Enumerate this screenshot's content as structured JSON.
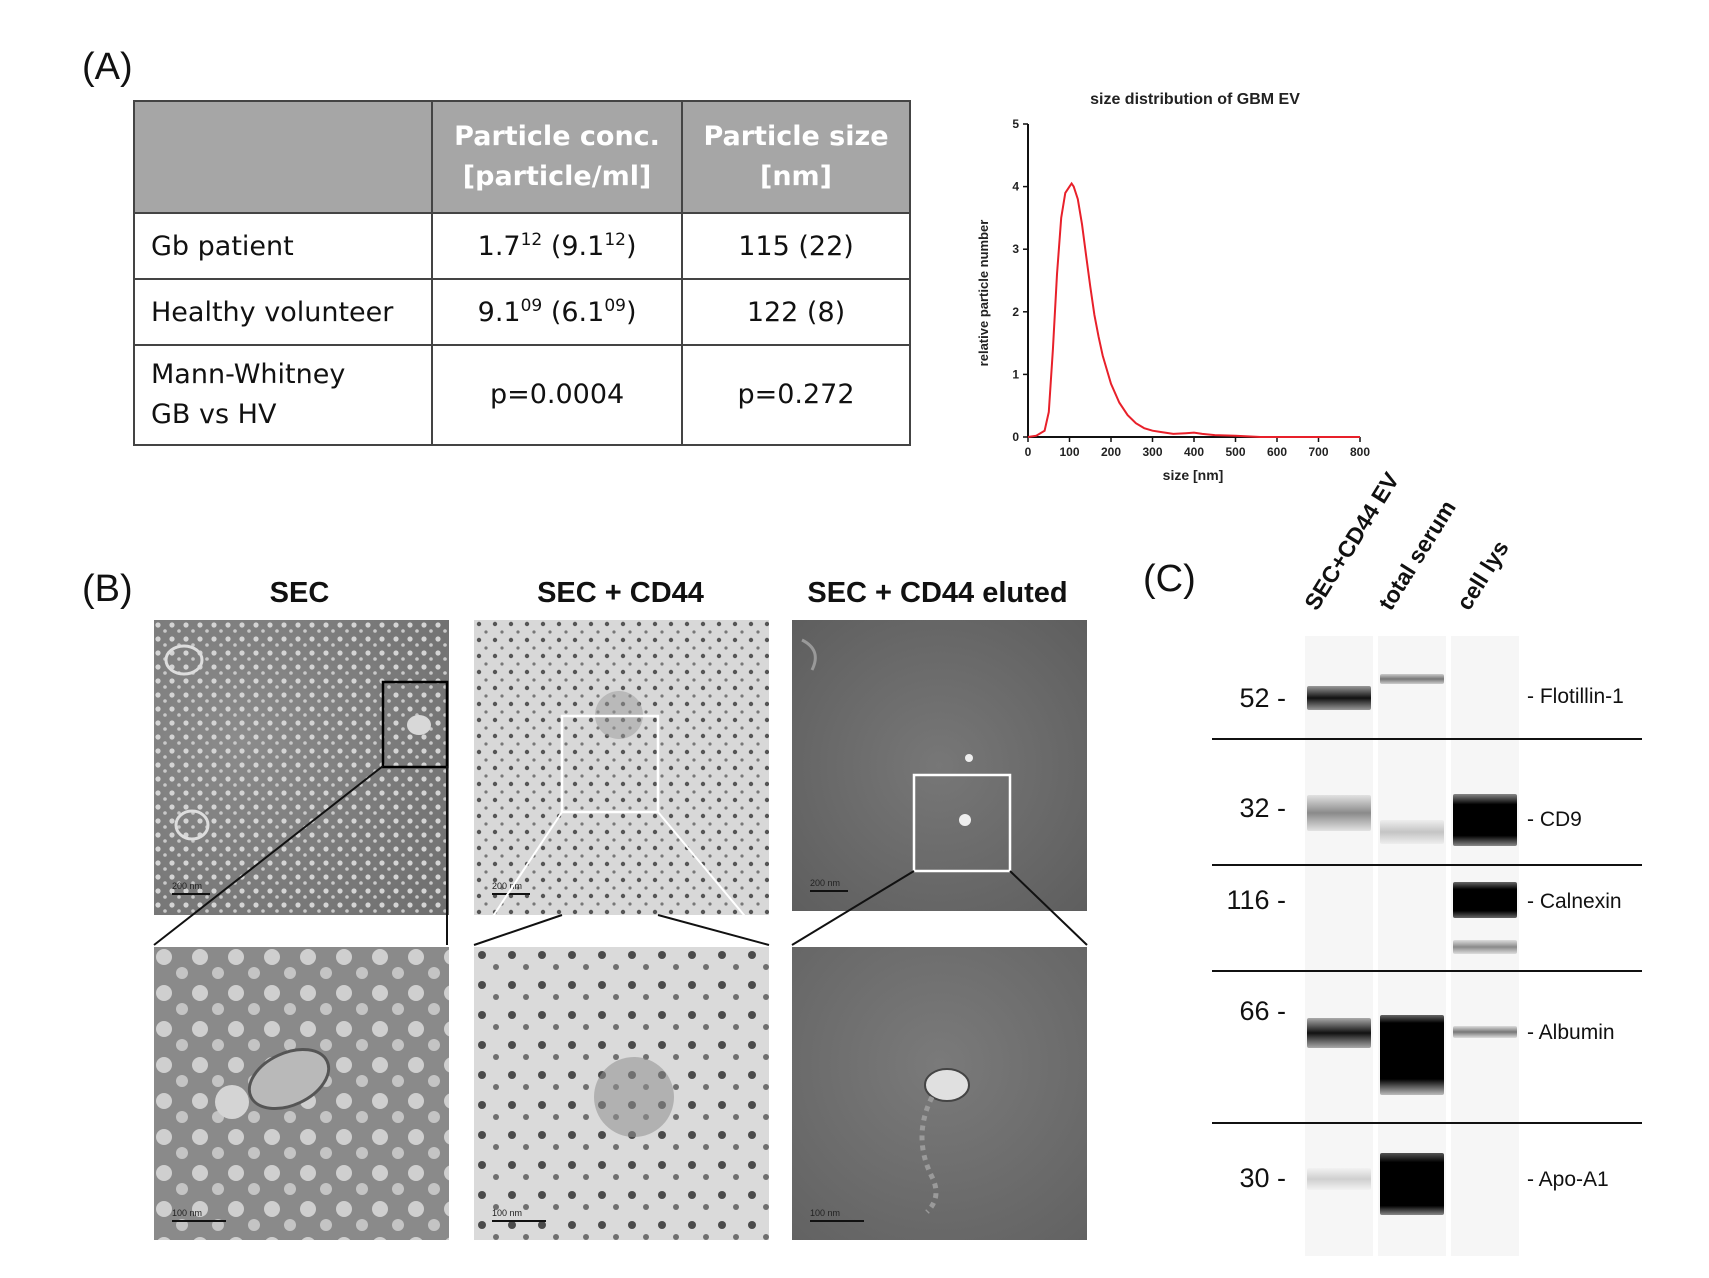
{
  "panel_labels": {
    "a": "(A)",
    "b": "(B)",
    "c": "(C)"
  },
  "table": {
    "headers": [
      "",
      "Particle conc. [particle/ml]",
      "Particle size [nm]"
    ],
    "header_lines": {
      "conc_1": "Particle conc.",
      "conc_2": "[particle/ml]",
      "size_1": "Particle size",
      "size_2": "[nm]"
    },
    "rows": [
      {
        "label": "Gb patient",
        "conc_base": "1.7",
        "conc_exp": "12",
        "conc_paren_base": "9.1",
        "conc_paren_exp": "12",
        "size": "115 (22)"
      },
      {
        "label": "Healthy volunteer",
        "conc_base": "9.1",
        "conc_exp": "09",
        "conc_paren_base": "6.1",
        "conc_paren_exp": "09",
        "size": "122 (8)"
      },
      {
        "label_1": "Mann-Whitney",
        "label_2": "GB vs HV",
        "conc": "p=0.0004",
        "size": "p=0.272"
      }
    ]
  },
  "chart_data": {
    "type": "line",
    "title": "size distribution of GBM EV",
    "xlabel": "size [nm]",
    "ylabel": "relative particle number",
    "xlim": [
      0,
      800
    ],
    "ylim": [
      0,
      5
    ],
    "xticks": [
      0,
      100,
      200,
      300,
      400,
      500,
      600,
      700,
      800
    ],
    "yticks": [
      0,
      1,
      2,
      3,
      4,
      5
    ],
    "series_color": "#e8202a",
    "x": [
      0,
      20,
      40,
      50,
      60,
      70,
      80,
      90,
      100,
      105,
      110,
      120,
      130,
      140,
      150,
      160,
      170,
      180,
      200,
      220,
      240,
      260,
      280,
      300,
      320,
      350,
      380,
      400,
      420,
      450,
      500,
      530,
      560,
      600,
      700,
      800
    ],
    "y": [
      0,
      0.02,
      0.1,
      0.4,
      1.4,
      2.6,
      3.5,
      3.9,
      4.0,
      4.05,
      4.0,
      3.8,
      3.4,
      2.9,
      2.4,
      1.95,
      1.6,
      1.3,
      0.85,
      0.55,
      0.35,
      0.22,
      0.14,
      0.1,
      0.08,
      0.05,
      0.06,
      0.07,
      0.05,
      0.03,
      0.02,
      0.01,
      0.0,
      0.0,
      0.0,
      0.0
    ]
  },
  "tem": {
    "titles": [
      "SEC",
      "SEC + CD44",
      "SEC + CD44 eluted"
    ],
    "scale_top": "200 nm",
    "scale_bottom": "100 nm"
  },
  "western": {
    "lanes": [
      "SEC+CD44 EV",
      "total serum",
      "cell lys"
    ],
    "markers": [
      {
        "mw": "52 -",
        "protein": "- Flotillin-1"
      },
      {
        "mw": "32 -",
        "protein": "- CD9"
      },
      {
        "mw": "116 -",
        "protein": "- Calnexin"
      },
      {
        "mw": "66 -",
        "protein": "- Albumin"
      },
      {
        "mw": "30 -",
        "protein": "- Apo-A1"
      }
    ]
  }
}
